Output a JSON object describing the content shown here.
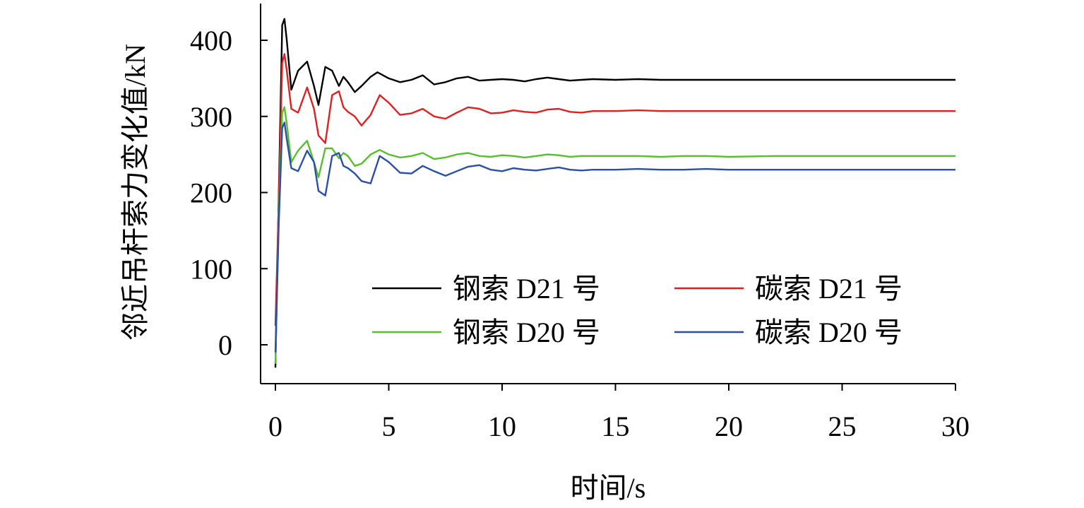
{
  "chart_data": {
    "type": "line",
    "title": "",
    "xlabel": "时间/s",
    "ylabel": "邻近吊杆索力变化值/kN",
    "xlim": [
      -0.5,
      30
    ],
    "ylim": [
      -50,
      450
    ],
    "xticks": [
      0,
      5,
      10,
      15,
      20,
      25,
      30
    ],
    "yticks": [
      0,
      100,
      200,
      300,
      400
    ],
    "grid": false,
    "legend_position": "lower-right",
    "legend_columns": 2,
    "series": [
      {
        "name": "钢索 D21 号",
        "color": "#000000",
        "x": [
          0,
          0.15,
          0.3,
          0.4,
          0.5,
          0.7,
          1.0,
          1.4,
          1.7,
          1.9,
          2.2,
          2.5,
          2.8,
          3.0,
          3.2,
          3.5,
          3.8,
          4.2,
          4.5,
          5.0,
          5.5,
          6.0,
          6.5,
          7.0,
          7.5,
          8.0,
          8.5,
          9.0,
          9.5,
          10.0,
          10.5,
          11.0,
          11.5,
          12.0,
          12.5,
          13.0,
          13.5,
          14.0,
          15.0,
          16.0,
          17.0,
          18.0,
          19.0,
          20.0,
          22.0,
          24.0,
          26.0,
          28.0,
          30.0
        ],
        "values": [
          -30,
          200,
          420,
          428,
          400,
          335,
          360,
          372,
          340,
          315,
          365,
          360,
          340,
          352,
          345,
          332,
          340,
          352,
          358,
          350,
          345,
          348,
          354,
          342,
          345,
          350,
          352,
          347,
          348,
          349,
          348,
          346,
          349,
          351,
          349,
          347,
          348,
          349,
          348,
          349,
          348,
          348,
          348,
          348,
          348,
          348,
          348,
          348,
          348
        ]
      },
      {
        "name": "碳索 D21 号",
        "color": "#e02020",
        "x": [
          0,
          0.15,
          0.3,
          0.4,
          0.5,
          0.7,
          1.0,
          1.4,
          1.7,
          1.9,
          2.2,
          2.5,
          2.8,
          3.0,
          3.2,
          3.5,
          3.8,
          4.2,
          4.6,
          5.0,
          5.5,
          6.0,
          6.5,
          7.0,
          7.5,
          8.0,
          8.5,
          9.0,
          9.5,
          10.0,
          10.5,
          11.0,
          11.5,
          12.0,
          12.5,
          13.0,
          13.5,
          14.0,
          15.0,
          16.0,
          17.0,
          18.0,
          19.0,
          20.0,
          22.0,
          24.0,
          26.0,
          28.0,
          30.0
        ],
        "values": [
          25,
          190,
          370,
          382,
          360,
          310,
          305,
          338,
          310,
          275,
          265,
          328,
          333,
          312,
          306,
          300,
          288,
          302,
          328,
          318,
          302,
          304,
          310,
          300,
          297,
          305,
          312,
          310,
          304,
          305,
          308,
          306,
          305,
          309,
          310,
          306,
          305,
          307,
          307,
          308,
          307,
          307,
          307,
          307,
          307,
          307,
          307,
          307,
          307
        ]
      },
      {
        "name": "钢索 D20 号",
        "color": "#55c02c",
        "x": [
          0,
          0.15,
          0.3,
          0.4,
          0.5,
          0.7,
          1.0,
          1.4,
          1.7,
          1.9,
          2.2,
          2.5,
          2.8,
          3.0,
          3.2,
          3.5,
          3.8,
          4.2,
          4.6,
          5.0,
          5.5,
          6.0,
          6.5,
          7.0,
          7.5,
          8.0,
          8.5,
          9.0,
          9.5,
          10.0,
          10.5,
          11.0,
          11.5,
          12.0,
          12.5,
          13.0,
          13.5,
          14.0,
          15.0,
          16.0,
          17.0,
          18.0,
          19.0,
          20.0,
          22.0,
          24.0,
          26.0,
          28.0,
          30.0
        ],
        "values": [
          -25,
          170,
          305,
          312,
          290,
          240,
          255,
          268,
          240,
          220,
          258,
          258,
          245,
          252,
          248,
          235,
          238,
          250,
          256,
          250,
          246,
          248,
          252,
          244,
          246,
          250,
          252,
          248,
          247,
          249,
          248,
          246,
          248,
          250,
          249,
          247,
          248,
          248,
          248,
          248,
          247,
          248,
          248,
          247,
          248,
          248,
          248,
          248,
          248
        ]
      },
      {
        "name": "碳索 D20 号",
        "color": "#2a4fa8",
        "x": [
          0,
          0.15,
          0.3,
          0.4,
          0.5,
          0.7,
          1.0,
          1.4,
          1.7,
          1.9,
          2.2,
          2.5,
          2.8,
          3.0,
          3.2,
          3.5,
          3.8,
          4.2,
          4.6,
          5.0,
          5.5,
          6.0,
          6.5,
          7.0,
          7.5,
          8.0,
          8.5,
          9.0,
          9.5,
          10.0,
          10.5,
          11.0,
          11.5,
          12.0,
          12.5,
          13.0,
          13.5,
          14.0,
          15.0,
          16.0,
          17.0,
          18.0,
          19.0,
          20.0,
          22.0,
          24.0,
          26.0,
          28.0,
          30.0
        ],
        "values": [
          -10,
          160,
          285,
          292,
          270,
          232,
          228,
          255,
          240,
          202,
          196,
          248,
          252,
          235,
          232,
          225,
          215,
          212,
          248,
          240,
          226,
          225,
          235,
          228,
          222,
          228,
          234,
          236,
          230,
          228,
          232,
          230,
          229,
          231,
          233,
          230,
          229,
          230,
          230,
          231,
          230,
          230,
          231,
          230,
          230,
          230,
          230,
          230,
          230
        ]
      }
    ]
  }
}
